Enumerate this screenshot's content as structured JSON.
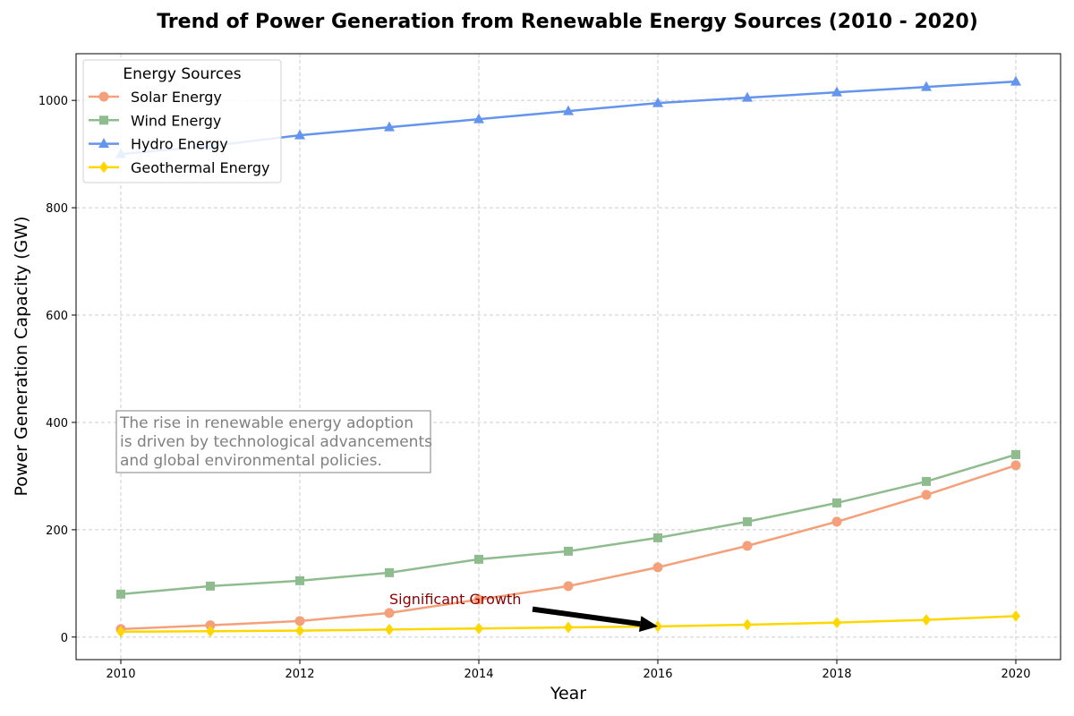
{
  "chart_data": {
    "type": "line",
    "title": "Trend of Power Generation from Renewable Energy Sources (2010 - 2020)",
    "xlabel": "Year",
    "ylabel": "Power Generation Capacity (GW)",
    "x": [
      2010,
      2011,
      2012,
      2013,
      2014,
      2015,
      2016,
      2017,
      2018,
      2019,
      2020
    ],
    "xlim": [
      2009.5,
      2020.5
    ],
    "ylim": [
      -42,
      1087
    ],
    "xticks": [
      2010,
      2012,
      2014,
      2016,
      2018,
      2020
    ],
    "yticks": [
      0,
      200,
      400,
      600,
      800,
      1000
    ],
    "grid": true,
    "series": [
      {
        "name": "Solar Energy",
        "color": "#f4a07a",
        "marker": "circle",
        "values": [
          15,
          22,
          30,
          45,
          70,
          95,
          130,
          170,
          215,
          265,
          320
        ]
      },
      {
        "name": "Wind Energy",
        "color": "#8fbc8f",
        "marker": "square",
        "values": [
          80,
          95,
          105,
          120,
          145,
          160,
          185,
          215,
          250,
          290,
          340
        ]
      },
      {
        "name": "Hydro Energy",
        "color": "#6495ed",
        "marker": "triangle",
        "values": [
          900,
          915,
          935,
          950,
          965,
          980,
          995,
          1005,
          1015,
          1025,
          1035
        ]
      },
      {
        "name": "Geothermal Energy",
        "color": "#ffd700",
        "marker": "diamond",
        "values": [
          10,
          11,
          12,
          14,
          16,
          18,
          20,
          23,
          27,
          32,
          39
        ]
      }
    ],
    "legend": {
      "title": "Energy Sources",
      "position": "top-left"
    },
    "annotation": {
      "text": "Significant Growth",
      "text_at": [
        2013,
        70
      ],
      "arrow_from": [
        2014.6,
        52
      ],
      "arrow_to": [
        2016,
        20
      ]
    },
    "note": {
      "lines": [
        "The rise in renewable energy adoption",
        "is driven by technological advancements",
        "and global environmental policies."
      ],
      "position": "left"
    }
  }
}
